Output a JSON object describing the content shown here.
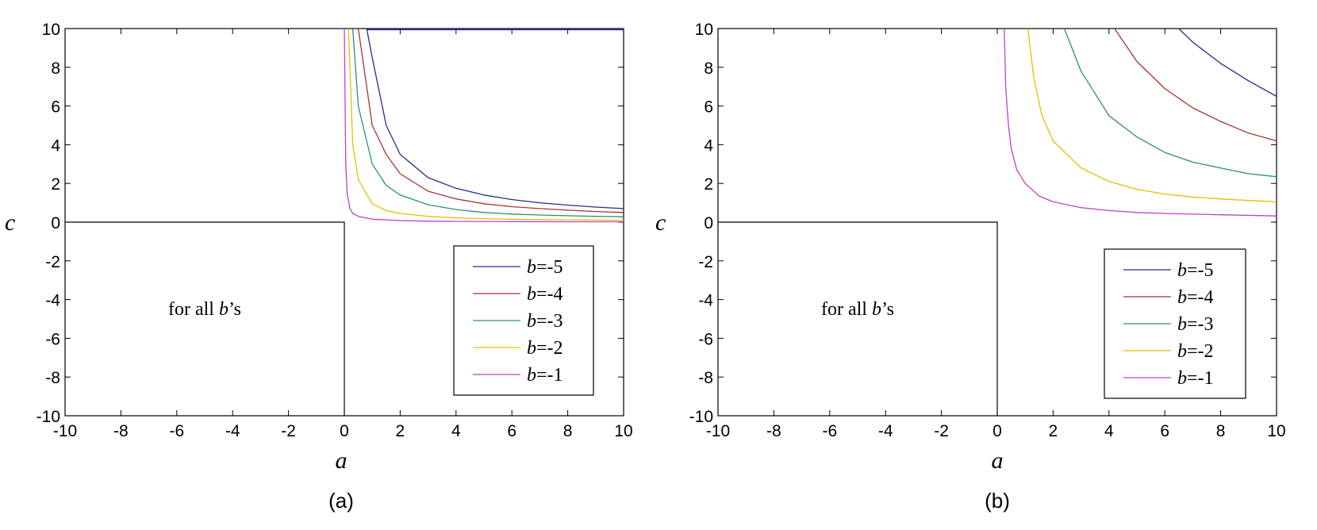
{
  "chart_data": [
    {
      "type": "line",
      "caption": "(a)",
      "xlabel": "a",
      "ylabel": "c",
      "xlim": [
        -10,
        10
      ],
      "ylim": [
        -10,
        10
      ],
      "xticks": [
        "-10",
        "-8",
        "-6",
        "-4",
        "-2",
        "0",
        "2",
        "4",
        "6",
        "8",
        "10"
      ],
      "yticks": [
        "-10",
        "-8",
        "-6",
        "-4",
        "-2",
        "0",
        "2",
        "4",
        "6",
        "8",
        "10"
      ],
      "grid": false,
      "legend": "bottom-right",
      "annotation": {
        "prefix": "for all ",
        "var": "b",
        "suffix": "’s",
        "x": -5,
        "y": -4.8
      },
      "region_boundary": [
        [
          -10,
          0
        ],
        [
          0,
          0
        ],
        [
          0,
          -10
        ]
      ],
      "series": [
        {
          "name_var": "b",
          "name_rest": "=-5",
          "color": "#2a2a8c",
          "x": [
            0.8,
            1.0,
            1.5,
            2,
            3,
            4,
            5,
            6,
            7,
            8,
            9,
            10
          ],
          "y": [
            10,
            8.5,
            5.0,
            3.5,
            2.3,
            1.75,
            1.4,
            1.17,
            1.0,
            0.88,
            0.78,
            0.7
          ]
        },
        {
          "name_var": "b",
          "name_rest": "=-4",
          "color": "#a83232",
          "x": [
            0.5,
            0.8,
            1.0,
            1.5,
            2,
            3,
            4,
            5,
            6,
            7,
            8,
            9,
            10
          ],
          "y": [
            10,
            7.0,
            5.0,
            3.5,
            2.5,
            1.6,
            1.2,
            0.95,
            0.8,
            0.7,
            0.62,
            0.55,
            0.5
          ]
        },
        {
          "name_var": "b",
          "name_rest": "=-3",
          "color": "#2a9070",
          "x": [
            0.3,
            0.5,
            1.0,
            1.5,
            2,
            3,
            4,
            5,
            6,
            7,
            8,
            9,
            10
          ],
          "y": [
            10,
            6.0,
            3.0,
            1.9,
            1.4,
            0.9,
            0.65,
            0.5,
            0.42,
            0.37,
            0.33,
            0.3,
            0.28
          ]
        },
        {
          "name_var": "b",
          "name_rest": "=-2",
          "color": "#e0c000",
          "x": [
            0.15,
            0.3,
            0.5,
            1.0,
            1.5,
            2,
            3,
            4,
            5,
            6,
            7,
            8,
            9,
            10
          ],
          "y": [
            10,
            4.0,
            2.2,
            0.95,
            0.6,
            0.45,
            0.3,
            0.22,
            0.18,
            0.15,
            0.13,
            0.12,
            0.11,
            0.1
          ]
        },
        {
          "name_var": "b",
          "name_rest": "=-1",
          "color": "#c040c8",
          "x": [
            0.0,
            0.05,
            0.1,
            0.2,
            0.3,
            0.5,
            1.0,
            2,
            3,
            4,
            6,
            8,
            10
          ],
          "y": [
            10,
            3.0,
            1.5,
            0.7,
            0.45,
            0.3,
            0.15,
            0.08,
            0.05,
            0.04,
            0.03,
            0.02,
            0.02
          ]
        }
      ],
      "top_boundary": {
        "color": "#2a2a8c",
        "x": [
          0.8,
          10
        ],
        "y": [
          10,
          10
        ]
      }
    },
    {
      "type": "line",
      "caption": "(b)",
      "xlabel": "a",
      "ylabel": "c",
      "xlim": [
        -10,
        10
      ],
      "ylim": [
        -10,
        10
      ],
      "xticks": [
        "-10",
        "-8",
        "-6",
        "-4",
        "-2",
        "0",
        "2",
        "4",
        "6",
        "8",
        "10"
      ],
      "yticks": [
        "-10",
        "-8",
        "-6",
        "-4",
        "-2",
        "0",
        "2",
        "4",
        "6",
        "8",
        "10"
      ],
      "grid": false,
      "legend": "bottom-right",
      "annotation": {
        "prefix": "for all ",
        "var": "b",
        "suffix": "’s",
        "x": -5,
        "y": -4.8
      },
      "region_boundary": [
        [
          -10,
          0
        ],
        [
          0,
          0
        ],
        [
          0,
          -10
        ]
      ],
      "series": [
        {
          "name_var": "b",
          "name_rest": "=-5",
          "color": "#2a2a8c",
          "x": [
            6.5,
            7,
            8,
            9,
            10
          ],
          "y": [
            10,
            9.3,
            8.2,
            7.3,
            6.5
          ]
        },
        {
          "name_var": "b",
          "name_rest": "=-4",
          "color": "#a83232",
          "x": [
            4.2,
            5,
            6,
            7,
            8,
            9,
            10
          ],
          "y": [
            10,
            8.3,
            6.9,
            5.9,
            5.2,
            4.6,
            4.2
          ]
        },
        {
          "name_var": "b",
          "name_rest": "=-3",
          "color": "#2a9070",
          "x": [
            2.4,
            3,
            4,
            5,
            6,
            7,
            8,
            9,
            10
          ],
          "y": [
            10,
            7.8,
            5.5,
            4.4,
            3.6,
            3.1,
            2.8,
            2.5,
            2.35
          ]
        },
        {
          "name_var": "b",
          "name_rest": "=-2",
          "color": "#e0c000",
          "x": [
            1.1,
            1.3,
            1.6,
            2,
            3,
            4,
            5,
            6,
            7,
            8,
            9,
            10
          ],
          "y": [
            10,
            7.5,
            5.5,
            4.2,
            2.8,
            2.1,
            1.7,
            1.45,
            1.3,
            1.2,
            1.12,
            1.05
          ]
        },
        {
          "name_var": "b",
          "name_rest": "=-1",
          "color": "#c040c8",
          "x": [
            0.25,
            0.3,
            0.4,
            0.5,
            0.7,
            1.0,
            1.5,
            2,
            3,
            4,
            5,
            6,
            8,
            10
          ],
          "y": [
            10,
            7.0,
            5.0,
            3.8,
            2.7,
            2.0,
            1.35,
            1.05,
            0.75,
            0.6,
            0.5,
            0.45,
            0.38,
            0.32
          ]
        }
      ]
    }
  ]
}
